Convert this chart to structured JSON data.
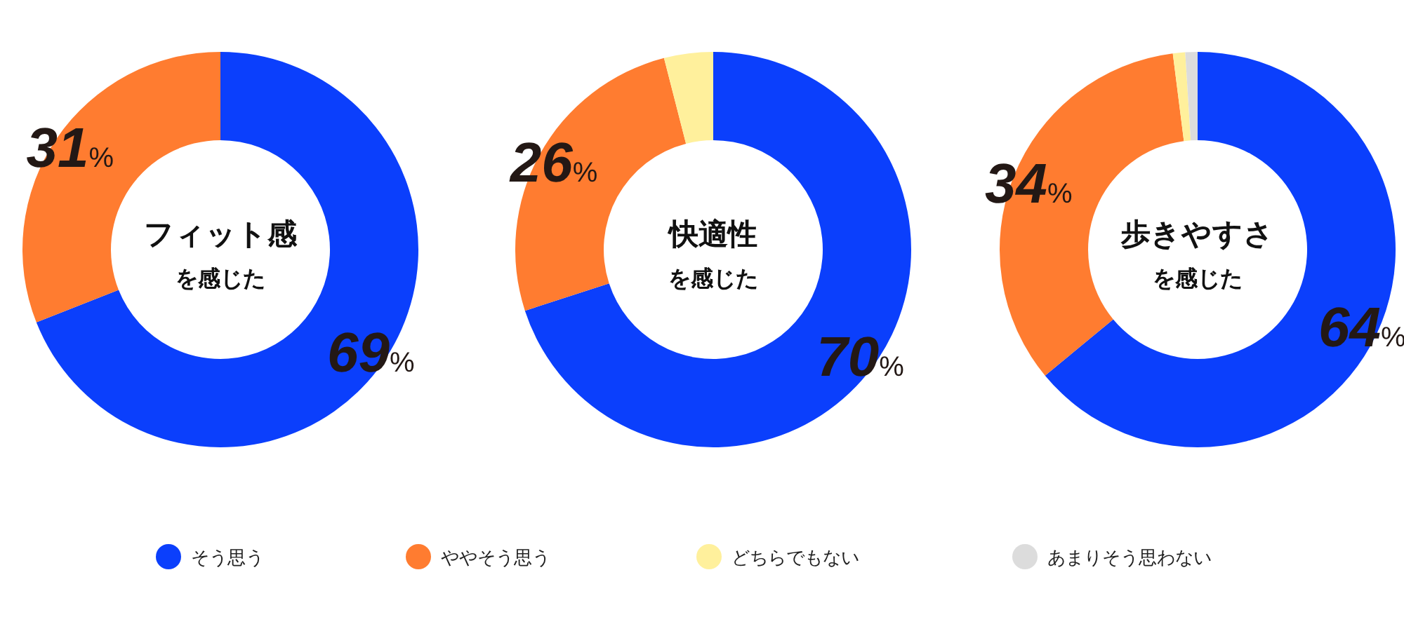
{
  "chart_data": [
    {
      "type": "donut",
      "title": "フィット感",
      "subtitle": "を感じた",
      "categories": [
        "そう思う",
        "ややそう思う",
        "どちらでもない",
        "あまりそう思わない"
      ],
      "values": [
        69,
        31,
        0,
        0
      ],
      "colors": [
        "#0b3ffc",
        "#ff7c30",
        "#fff09c",
        "#dcdcdc"
      ],
      "value_labels": [
        "69%",
        "31%",
        null,
        null
      ],
      "legend": "bottom"
    },
    {
      "type": "donut",
      "title": "快適性",
      "subtitle": "を感じた",
      "values": [
        70,
        26,
        4
      ],
      "colors": [
        "#0b3ffc",
        "#ff7c30",
        "#fff09c"
      ],
      "value_labels": [
        "70%",
        "26%",
        null
      ]
    },
    {
      "type": "donut",
      "title": "歩きやすさ",
      "subtitle": "を感じた",
      "values": [
        64,
        34,
        1,
        1
      ],
      "colors": [
        "#0b3ffc",
        "#ff7c30",
        "#fff09c",
        "#dcdcdc"
      ],
      "value_labels": [
        "64%",
        "34%",
        null,
        null
      ]
    }
  ]
}
